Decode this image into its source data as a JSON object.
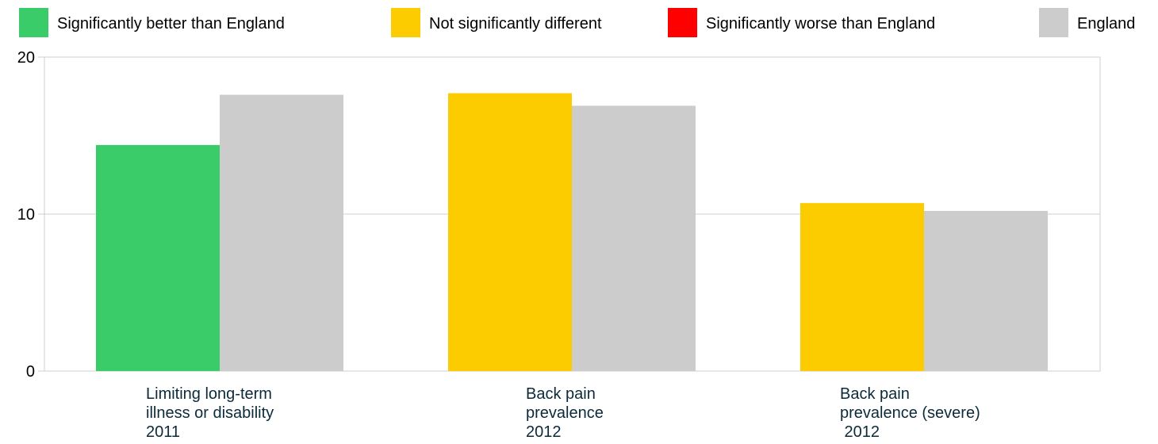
{
  "legend": [
    {
      "label": "Significantly better than England",
      "color": "#3ACC68"
    },
    {
      "label": "Not significantly different",
      "color": "#FCCB00"
    },
    {
      "label": "Significantly worse than England",
      "color": "#FF0000"
    },
    {
      "label": "England",
      "color": "#CCCCCC"
    }
  ],
  "chart_data": {
    "type": "bar",
    "categories": [
      [
        "Limiting long-term",
        "illness or disability",
        "2011"
      ],
      [
        "Back pain",
        "prevalence",
        "2012"
      ],
      [
        "Back pain",
        "prevalence (severe)",
        " 2012"
      ]
    ],
    "series": [
      {
        "values": [
          14.4,
          17.7,
          10.7
        ],
        "colors": [
          "#3ACC68",
          "#FCCB00",
          "#FCCB00"
        ]
      },
      {
        "name": "England",
        "values": [
          17.6,
          16.9,
          10.2
        ],
        "color": "#CCCCCC"
      }
    ],
    "yticks": [
      "0",
      "10",
      "20"
    ],
    "ylim": [
      0,
      20
    ],
    "grid": true,
    "legend_position": "top"
  }
}
